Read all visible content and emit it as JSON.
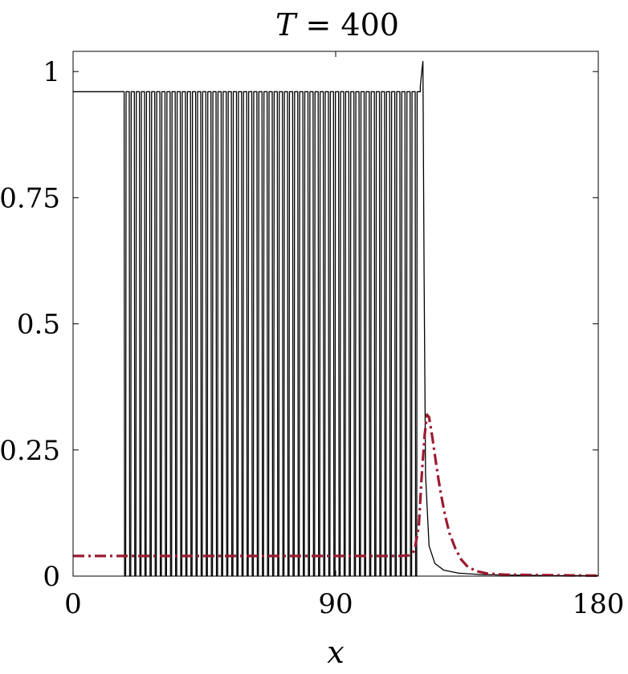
{
  "chart_data": {
    "type": "line",
    "title_var": "T",
    "title_eq": " = ",
    "title_val": "400",
    "xlabel": "x",
    "ylabel": "",
    "xlim": [
      0,
      180
    ],
    "ylim": [
      0,
      1.04
    ],
    "xticks": [
      0,
      90,
      180
    ],
    "xtick_labels": [
      "0",
      "90",
      "180"
    ],
    "yticks": [
      0,
      0.25,
      0.5,
      0.75,
      1
    ],
    "ytick_labels": [
      "0",
      "0.25",
      "0.5",
      "0.75",
      "1"
    ],
    "grid": false,
    "legend": "none",
    "series": [
      {
        "style": "solid",
        "color": "#000000",
        "plateau_value": 0.96,
        "oscillation_start_x": 17.5,
        "oscillation_end_x": 119.0,
        "oscillation_count": 58,
        "oscillation_min": 0,
        "oscillation_max": 0.96,
        "peak": [
          119.9,
          1.02
        ],
        "points": [
          [
            0,
            0.96
          ],
          [
            17.5,
            0.96
          ],
          [
            119.0,
            0.97
          ],
          [
            119.5,
            1.0
          ],
          [
            119.9,
            1.02
          ],
          [
            120.3,
            0.6
          ],
          [
            120.8,
            0.2
          ],
          [
            122,
            0.06
          ],
          [
            124,
            0.025
          ],
          [
            127,
            0.012
          ],
          [
            132,
            0.006
          ],
          [
            140,
            0.003
          ],
          [
            150,
            0.002
          ],
          [
            165,
            0.001
          ],
          [
            180,
            0.001
          ]
        ]
      },
      {
        "style": "dash-dot",
        "color": "#9b1b30",
        "points": [
          [
            0,
            0.04
          ],
          [
            112,
            0.04
          ],
          [
            115,
            0.041
          ],
          [
            117,
            0.05
          ],
          [
            118.5,
            0.1
          ],
          [
            119.5,
            0.2
          ],
          [
            120.5,
            0.28
          ],
          [
            121.3,
            0.32
          ],
          [
            122,
            0.315
          ],
          [
            123,
            0.28
          ],
          [
            124,
            0.24
          ],
          [
            125,
            0.2
          ],
          [
            126,
            0.165
          ],
          [
            127.5,
            0.12
          ],
          [
            129,
            0.085
          ],
          [
            131,
            0.055
          ],
          [
            133,
            0.033
          ],
          [
            135,
            0.02
          ],
          [
            138,
            0.01
          ],
          [
            142,
            0.005
          ],
          [
            148,
            0.003
          ],
          [
            160,
            0.002
          ],
          [
            180,
            0.001
          ]
        ]
      }
    ]
  }
}
